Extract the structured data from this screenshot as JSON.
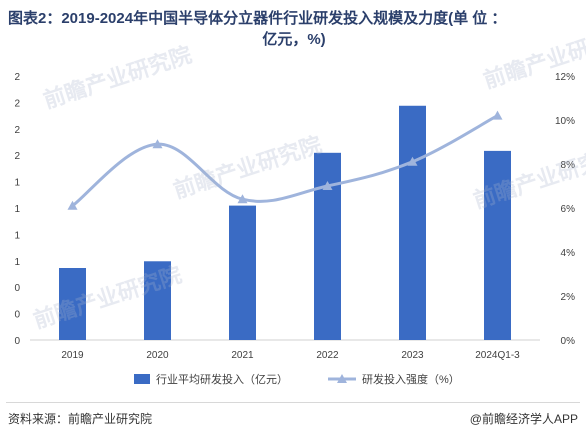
{
  "title_line1": "图表2：2019-2024年中国半导体分立器件行业研发投入规模及力度(单 位 ：",
  "title_line2": "亿元，%)",
  "source": "资料来源：前瞻产业研究院",
  "credit": "@前瞻经济学人APP",
  "watermark": "前瞻产业研究院",
  "colors": {
    "bar": "#3a6bc4",
    "line": "#9fb4dc",
    "axis": "#d0d0d0",
    "text": "#404040"
  },
  "chart_data": {
    "type": "bar+line",
    "categories": [
      "2019",
      "2020",
      "2021",
      "2022",
      "2023",
      "2024Q1-3"
    ],
    "left_axis_ticks": [
      "2",
      "2",
      "2",
      "2",
      "1",
      "1",
      "1",
      "1",
      "0",
      "0",
      "0"
    ],
    "right_axis_ticks": [
      "12%",
      "10%",
      "8%",
      "6%",
      "4%",
      "2%",
      "0%"
    ],
    "right_ylim": [
      0,
      12
    ],
    "series": [
      {
        "name": "行业平均研发投入（亿元）",
        "type": "bar",
        "axis": "left",
        "values": [
          0.75,
          0.82,
          1.4,
          1.95,
          2.44,
          1.97
        ],
        "ylim": [
          0,
          2.75
        ]
      },
      {
        "name": "研发投入强度（%）",
        "type": "line",
        "axis": "right",
        "values": [
          6.1,
          8.9,
          6.4,
          7.0,
          8.1,
          10.2
        ]
      }
    ],
    "legend": "bottom"
  }
}
